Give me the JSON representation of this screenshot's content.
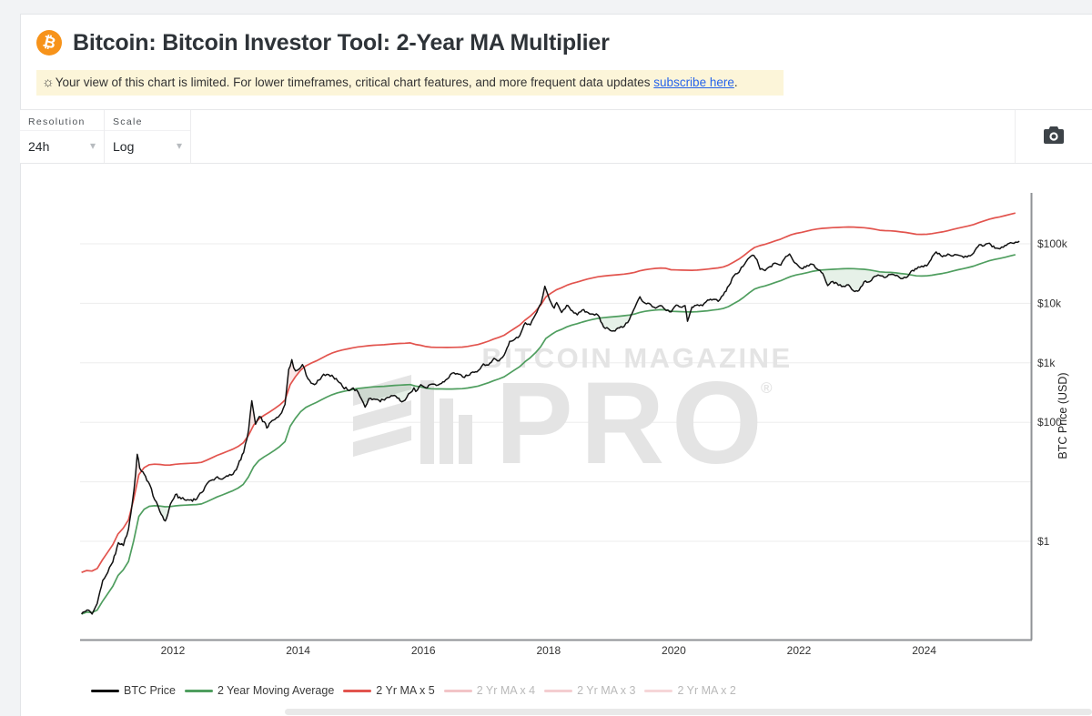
{
  "header": {
    "title": "Bitcoin: Bitcoin Investor Tool: 2-Year MA Multiplier",
    "logo_color": "#f7931a",
    "logo_glyph": "₿"
  },
  "notice": {
    "icon": "☼",
    "text_before_link": "Your view of this chart is limited. For lower timeframes, critical chart features, and more frequent data updates ",
    "link_text": "subscribe here",
    "text_after_link": ".",
    "bg": "#fcf5d9",
    "link_color": "#2563eb"
  },
  "toolbar": {
    "resolution_label": "Resolution",
    "resolution_value": "24h",
    "scale_label": "Scale",
    "scale_value": "Log",
    "chevron": "▾"
  },
  "axes": {
    "y_title": "BTC Price (USD)",
    "y_ticks": [
      {
        "label": "$100k",
        "value": 100000
      },
      {
        "label": "$10k",
        "value": 10000
      },
      {
        "label": "$1k",
        "value": 1000
      },
      {
        "label": "$100",
        "value": 100
      },
      {
        "label": "$1",
        "value": 1
      }
    ],
    "y_grid_values": [
      100000,
      10000,
      1000,
      100,
      10,
      1
    ],
    "x_ticks": [
      2012,
      2014,
      2016,
      2018,
      2020,
      2022,
      2024
    ]
  },
  "watermark": {
    "line1": "BITCOIN MAGAZINE",
    "pro": "PRO",
    "reg": "®",
    "color": "#e4e4e4"
  },
  "legend": {
    "items": [
      {
        "label": "BTC Price",
        "color": "#111111",
        "active": true
      },
      {
        "label": "2 Year Moving Average",
        "color": "#4f9e5f",
        "active": true
      },
      {
        "label": "2 Yr MA x 5",
        "color": "#e2544e",
        "active": true
      },
      {
        "label": "2 Yr MA x 4",
        "color": "#f2c4c7",
        "active": false
      },
      {
        "label": "2 Yr MA x 3",
        "color": "#f4cdd0",
        "active": false
      },
      {
        "label": "2 Yr MA x 2",
        "color": "#f6d6d8",
        "active": false
      }
    ],
    "inactive_text_color": "#b9b9b9",
    "active_text_color": "#3b3b3b"
  },
  "chart_data": {
    "type": "line",
    "title": "Bitcoin: Bitcoin Investor Tool: 2-Year MA Multiplier",
    "xlabel": "",
    "ylabel": "BTC Price (USD)",
    "y_scale": "log",
    "x_range": [
      2010.54,
      2025.52
    ],
    "y_axis_labeled_values": [
      1,
      100,
      1000,
      10000,
      100000
    ],
    "colors": {
      "price": "#111111",
      "ma": "#4f9e5f",
      "ma5": "#e2544e",
      "buy_fill": "rgba(79,158,95,0.14)",
      "sell_fill": "rgba(224,84,78,0.13)",
      "grid": "#ededed",
      "axis": "#8f9296"
    },
    "zones": {
      "buy_zone": "shaded green where BTC Price is below the 2 Year Moving Average",
      "sell_zone": "shaded pink where BTC Price is above 2 Yr MA x 5"
    },
    "series": [
      {
        "name": "BTC Price",
        "color": "#111111",
        "points": [
          [
            2010.54,
            0.06
          ],
          [
            2010.63,
            0.07
          ],
          [
            2010.71,
            0.06
          ],
          [
            2010.79,
            0.09
          ],
          [
            2010.88,
            0.22
          ],
          [
            2010.96,
            0.3
          ],
          [
            2011.04,
            0.45
          ],
          [
            2011.13,
            0.95
          ],
          [
            2011.21,
            0.85
          ],
          [
            2011.29,
            1.6
          ],
          [
            2011.33,
            3.0
          ],
          [
            2011.38,
            7.5
          ],
          [
            2011.43,
            29
          ],
          [
            2011.47,
            17
          ],
          [
            2011.5,
            15
          ],
          [
            2011.54,
            13.5
          ],
          [
            2011.63,
            9
          ],
          [
            2011.71,
            5
          ],
          [
            2011.79,
            3.2
          ],
          [
            2011.88,
            2.2
          ],
          [
            2011.92,
            2.9
          ],
          [
            2011.96,
            4.2
          ],
          [
            2012.04,
            6.1
          ],
          [
            2012.13,
            5.2
          ],
          [
            2012.21,
            4.9
          ],
          [
            2012.29,
            5.0
          ],
          [
            2012.38,
            5.1
          ],
          [
            2012.46,
            6.6
          ],
          [
            2012.54,
            9.2
          ],
          [
            2012.63,
            10.8
          ],
          [
            2012.71,
            12.2
          ],
          [
            2012.79,
            11.1
          ],
          [
            2012.88,
            12.4
          ],
          [
            2012.96,
            13.4
          ],
          [
            2013.04,
            19
          ],
          [
            2013.13,
            31
          ],
          [
            2013.21,
            75
          ],
          [
            2013.26,
            230
          ],
          [
            2013.29,
            145
          ],
          [
            2013.32,
            93
          ],
          [
            2013.38,
            125
          ],
          [
            2013.46,
            102
          ],
          [
            2013.5,
            80
          ],
          [
            2013.54,
            96
          ],
          [
            2013.63,
            112
          ],
          [
            2013.71,
            133
          ],
          [
            2013.79,
            200
          ],
          [
            2013.85,
            780
          ],
          [
            2013.9,
            1130
          ],
          [
            2013.93,
            820
          ],
          [
            2013.96,
            730
          ],
          [
            2014.04,
            835
          ],
          [
            2014.07,
            935
          ],
          [
            2014.13,
            620
          ],
          [
            2014.21,
            455
          ],
          [
            2014.29,
            450
          ],
          [
            2014.38,
            590
          ],
          [
            2014.46,
            640
          ],
          [
            2014.54,
            620
          ],
          [
            2014.63,
            500
          ],
          [
            2014.71,
            400
          ],
          [
            2014.79,
            350
          ],
          [
            2014.88,
            378
          ],
          [
            2014.96,
            320
          ],
          [
            2015.04,
            215
          ],
          [
            2015.07,
            180
          ],
          [
            2015.13,
            250
          ],
          [
            2015.21,
            247
          ],
          [
            2015.29,
            235
          ],
          [
            2015.38,
            237
          ],
          [
            2015.46,
            263
          ],
          [
            2015.54,
            284
          ],
          [
            2015.63,
            230
          ],
          [
            2015.71,
            236
          ],
          [
            2015.79,
            314
          ],
          [
            2015.85,
            380
          ],
          [
            2015.88,
            330
          ],
          [
            2015.96,
            430
          ],
          [
            2016.04,
            380
          ],
          [
            2016.13,
            437
          ],
          [
            2016.21,
            416
          ],
          [
            2016.29,
            452
          ],
          [
            2016.38,
            533
          ],
          [
            2016.46,
            670
          ],
          [
            2016.54,
            660
          ],
          [
            2016.63,
            577
          ],
          [
            2016.71,
            610
          ],
          [
            2016.79,
            700
          ],
          [
            2016.88,
            745
          ],
          [
            2016.96,
            960
          ],
          [
            2017.04,
            920
          ],
          [
            2017.13,
            1190
          ],
          [
            2017.21,
            1080
          ],
          [
            2017.29,
            1350
          ],
          [
            2017.38,
            2300
          ],
          [
            2017.46,
            2480
          ],
          [
            2017.54,
            2870
          ],
          [
            2017.63,
            4700
          ],
          [
            2017.71,
            4340
          ],
          [
            2017.79,
            6450
          ],
          [
            2017.88,
            9900
          ],
          [
            2017.94,
            19400
          ],
          [
            2017.99,
            13900
          ],
          [
            2018.04,
            10200
          ],
          [
            2018.09,
            8300
          ],
          [
            2018.13,
            10300
          ],
          [
            2018.21,
            7000
          ],
          [
            2018.29,
            9250
          ],
          [
            2018.38,
            7500
          ],
          [
            2018.46,
            6400
          ],
          [
            2018.54,
            7750
          ],
          [
            2018.63,
            7000
          ],
          [
            2018.71,
            6600
          ],
          [
            2018.79,
            6300
          ],
          [
            2018.88,
            4000
          ],
          [
            2018.96,
            3700
          ],
          [
            2019.04,
            3450
          ],
          [
            2019.13,
            3850
          ],
          [
            2019.21,
            4100
          ],
          [
            2019.29,
            5300
          ],
          [
            2019.38,
            8550
          ],
          [
            2019.46,
            12900
          ],
          [
            2019.5,
            10800
          ],
          [
            2019.54,
            10100
          ],
          [
            2019.63,
            9600
          ],
          [
            2019.71,
            8300
          ],
          [
            2019.79,
            9150
          ],
          [
            2019.88,
            7550
          ],
          [
            2019.96,
            7200
          ],
          [
            2020.04,
            9350
          ],
          [
            2020.13,
            8550
          ],
          [
            2020.18,
            9150
          ],
          [
            2020.22,
            5000
          ],
          [
            2020.29,
            8650
          ],
          [
            2020.38,
            9450
          ],
          [
            2020.46,
            9140
          ],
          [
            2020.54,
            11350
          ],
          [
            2020.63,
            11650
          ],
          [
            2020.71,
            10800
          ],
          [
            2020.79,
            13800
          ],
          [
            2020.88,
            19700
          ],
          [
            2020.96,
            29000
          ],
          [
            2021.04,
            33100
          ],
          [
            2021.08,
            40500
          ],
          [
            2021.13,
            45200
          ],
          [
            2021.21,
            58800
          ],
          [
            2021.28,
            63500
          ],
          [
            2021.33,
            54000
          ],
          [
            2021.38,
            37300
          ],
          [
            2021.46,
            35500
          ],
          [
            2021.54,
            41500
          ],
          [
            2021.63,
            47100
          ],
          [
            2021.71,
            43800
          ],
          [
            2021.79,
            61300
          ],
          [
            2021.85,
            67500
          ],
          [
            2021.92,
            49500
          ],
          [
            2021.96,
            46200
          ],
          [
            2022.04,
            38500
          ],
          [
            2022.13,
            43200
          ],
          [
            2022.21,
            45500
          ],
          [
            2022.29,
            37700
          ],
          [
            2022.38,
            31800
          ],
          [
            2022.46,
            19900
          ],
          [
            2022.54,
            23300
          ],
          [
            2022.63,
            20050
          ],
          [
            2022.71,
            19400
          ],
          [
            2022.79,
            20500
          ],
          [
            2022.87,
            16200
          ],
          [
            2022.96,
            16550
          ],
          [
            2023.04,
            23100
          ],
          [
            2023.13,
            23150
          ],
          [
            2023.21,
            28500
          ],
          [
            2023.29,
            29250
          ],
          [
            2023.38,
            27200
          ],
          [
            2023.46,
            30450
          ],
          [
            2023.54,
            29200
          ],
          [
            2023.63,
            25950
          ],
          [
            2023.71,
            26950
          ],
          [
            2023.79,
            34650
          ],
          [
            2023.88,
            37700
          ],
          [
            2023.96,
            42250
          ],
          [
            2024.04,
            42600
          ],
          [
            2024.13,
            61200
          ],
          [
            2024.19,
            73200
          ],
          [
            2024.29,
            60600
          ],
          [
            2024.38,
            67500
          ],
          [
            2024.46,
            62700
          ],
          [
            2024.54,
            64600
          ],
          [
            2024.63,
            59000
          ],
          [
            2024.71,
            63300
          ],
          [
            2024.79,
            70200
          ],
          [
            2024.88,
            96400
          ],
          [
            2024.96,
            93400
          ],
          [
            2025.04,
            102400
          ],
          [
            2025.13,
            84400
          ],
          [
            2025.21,
            82500
          ],
          [
            2025.29,
            94200
          ],
          [
            2025.38,
            104600
          ],
          [
            2025.46,
            107100
          ],
          [
            2025.52,
            110500
          ]
        ]
      },
      {
        "name": "2 Year Moving Average",
        "color": "#4f9e5f",
        "derived": "trailing 24-month simple moving average of BTC Price",
        "anchor_points": [
          [
            2012,
            3.9
          ],
          [
            2013,
            8.2
          ],
          [
            2014,
            150
          ],
          [
            2015,
            300
          ],
          [
            2016,
            390
          ],
          [
            2017,
            440
          ],
          [
            2018,
            2950
          ],
          [
            2019,
            5900
          ],
          [
            2020,
            7800
          ],
          [
            2021,
            9700
          ],
          [
            2022,
            30000
          ],
          [
            2023,
            28000
          ],
          [
            2024,
            29400
          ],
          [
            2025,
            47000
          ],
          [
            2025.52,
            67000
          ]
        ]
      },
      {
        "name": "2 Yr MA x 5",
        "color": "#e2544e",
        "derived": "2 Year Moving Average multiplied by 5"
      },
      {
        "name": "2 Yr MA x 4",
        "hidden": true
      },
      {
        "name": "2 Yr MA x 3",
        "hidden": true
      },
      {
        "name": "2 Yr MA x 2",
        "hidden": true
      }
    ]
  }
}
